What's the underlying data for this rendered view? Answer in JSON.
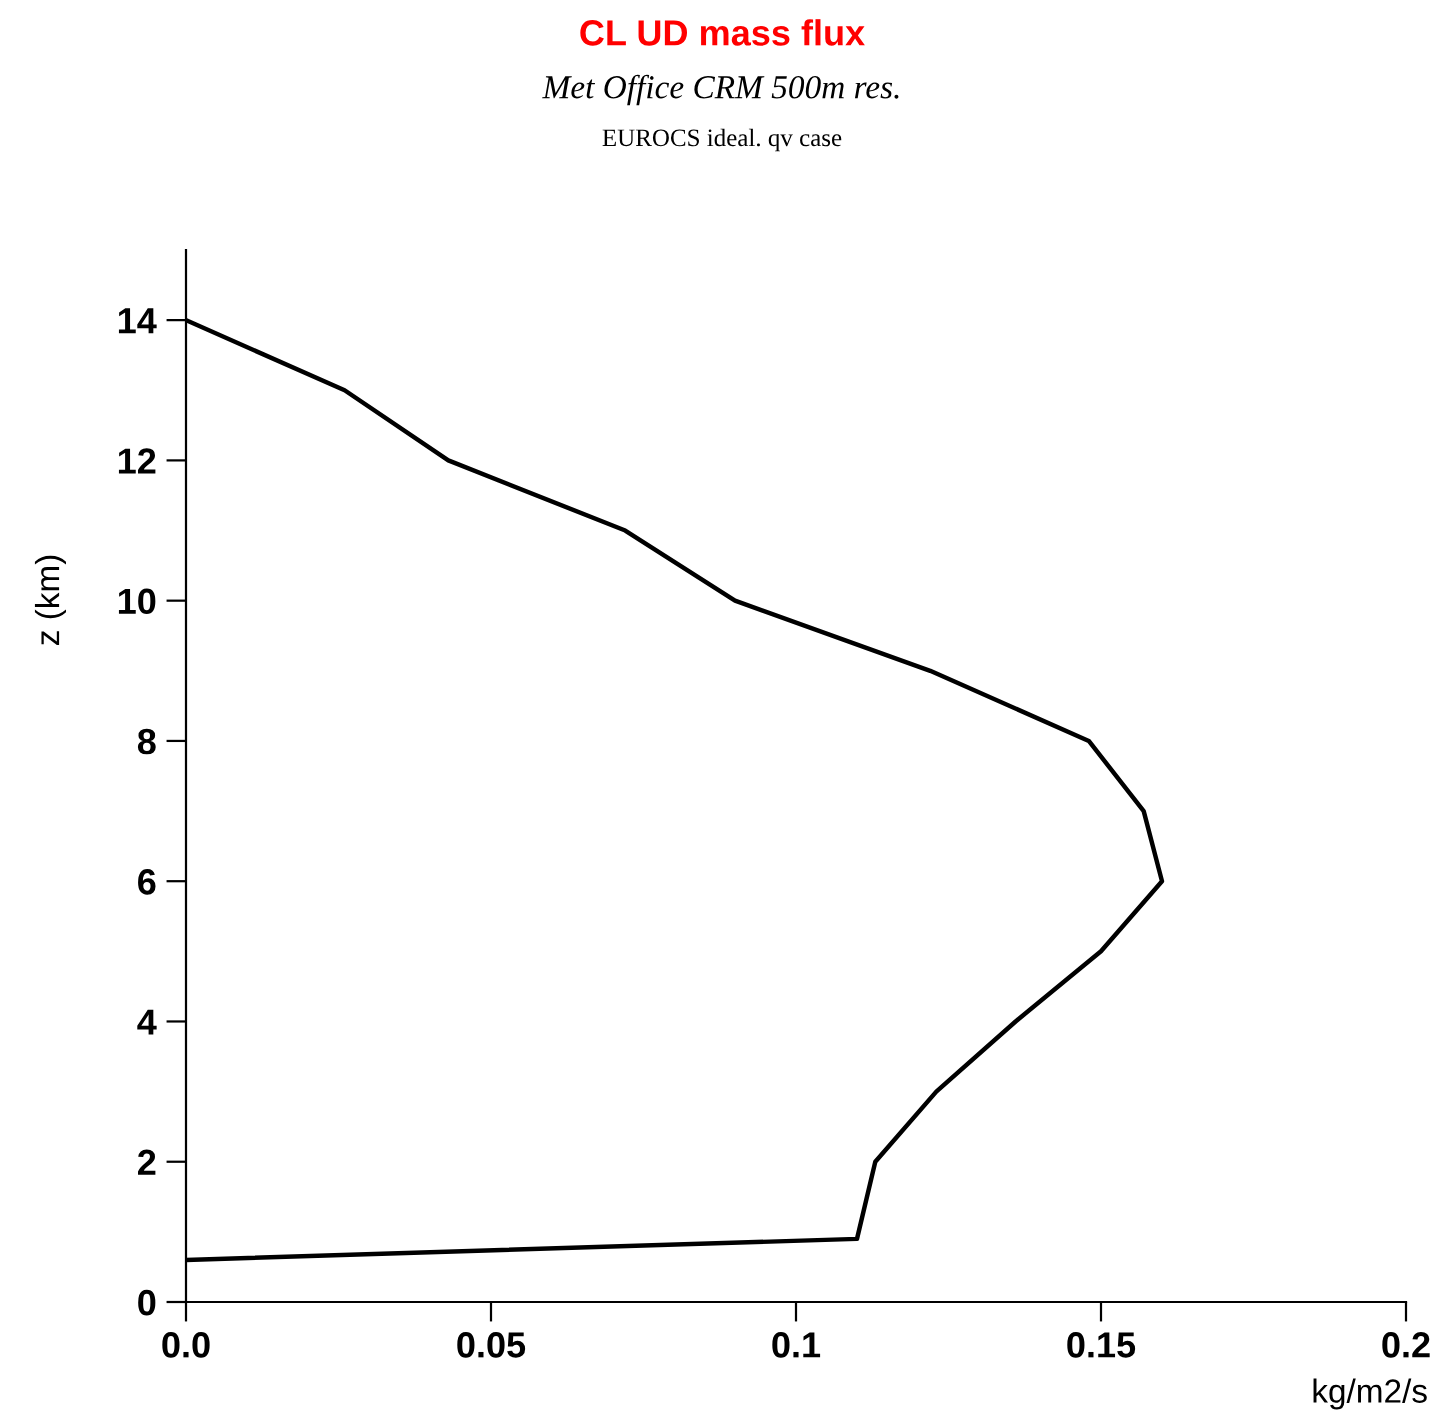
{
  "chart_data": {
    "type": "line",
    "title": "CL UD mass flux",
    "subtitle": "Met Office CRM 500m res.",
    "annotations": [
      "EUROCS ideal. qv case"
    ],
    "xlabel": "kg/m2/s",
    "ylabel": "z (km)",
    "series": [
      {
        "color": "#000000",
        "x": [
          0,
          0.11,
          0.113,
          0.123,
          0.136,
          0.15,
          0.16,
          0.157,
          0.148,
          0.122,
          0.09,
          0.072,
          0.043,
          0.026,
          0
        ],
        "values": [
          0.6,
          0.9,
          2,
          3,
          4,
          5,
          6,
          7,
          8,
          9,
          10,
          11,
          12,
          13,
          14
        ]
      }
    ],
    "xlim": [
      0,
      0.2
    ],
    "xticks": [
      {
        "value": 0,
        "label": "0.0"
      },
      0.05,
      0.1,
      0.15,
      0.2
    ],
    "ylim": [
      0,
      15
    ],
    "yticks": [
      0,
      2,
      4,
      6,
      8,
      10,
      12,
      14
    ],
    "grid": false,
    "legend": false
  }
}
